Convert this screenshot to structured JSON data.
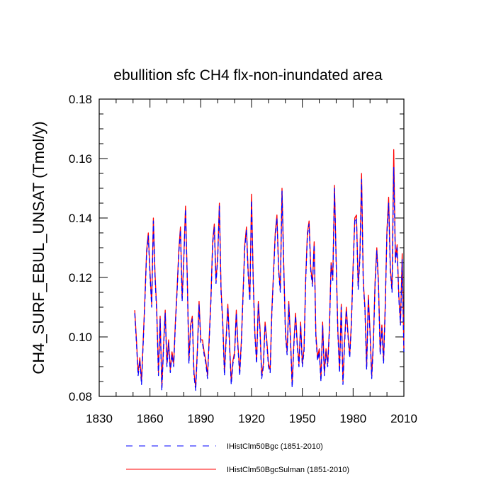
{
  "chart_data": {
    "type": "line",
    "title": "ebullition sfc CH4 flx-non-inundated area",
    "ylabel": "CH4_SURF_EBUL_UNSAT  (Tmol/y)",
    "xlabel": "",
    "xlim": [
      1830,
      2010
    ],
    "ylim": [
      0.08,
      0.18
    ],
    "x_ticks": [
      1830,
      1860,
      1890,
      1920,
      1950,
      1980,
      2010
    ],
    "y_ticks": [
      0.08,
      0.1,
      0.12,
      0.14,
      0.16,
      0.18
    ],
    "x_tick_labels": [
      "1830",
      "1860",
      "1890",
      "1920",
      "1950",
      "1980",
      "2010"
    ],
    "y_tick_labels": [
      "0.08",
      "0.10",
      "0.12",
      "0.14",
      "0.16",
      "0.18"
    ],
    "grid": false,
    "legend_placement": "bottom-left",
    "x": [
      1851,
      1852,
      1853,
      1854,
      1855,
      1856,
      1857,
      1858,
      1859,
      1860,
      1861,
      1862,
      1863,
      1864,
      1865,
      1866,
      1867,
      1868,
      1869,
      1870,
      1871,
      1872,
      1873,
      1874,
      1875,
      1876,
      1877,
      1878,
      1879,
      1880,
      1881,
      1882,
      1883,
      1884,
      1885,
      1886,
      1887,
      1888,
      1889,
      1890,
      1891,
      1892,
      1893,
      1894,
      1895,
      1896,
      1897,
      1898,
      1899,
      1900,
      1901,
      1902,
      1903,
      1904,
      1905,
      1906,
      1907,
      1908,
      1909,
      1910,
      1911,
      1912,
      1913,
      1914,
      1915,
      1916,
      1917,
      1918,
      1919,
      1920,
      1921,
      1922,
      1923,
      1924,
      1925,
      1926,
      1927,
      1928,
      1929,
      1930,
      1931,
      1932,
      1933,
      1934,
      1935,
      1936,
      1937,
      1938,
      1939,
      1940,
      1941,
      1942,
      1943,
      1944,
      1945,
      1946,
      1947,
      1948,
      1949,
      1950,
      1951,
      1952,
      1953,
      1954,
      1955,
      1956,
      1957,
      1958,
      1959,
      1960,
      1961,
      1962,
      1963,
      1964,
      1965,
      1966,
      1967,
      1968,
      1969,
      1970,
      1971,
      1972,
      1973,
      1974,
      1975,
      1976,
      1977,
      1978,
      1979,
      1980,
      1981,
      1982,
      1983,
      1984,
      1985,
      1986,
      1987,
      1988,
      1989,
      1990,
      1991,
      1992,
      1993,
      1994,
      1995,
      1996,
      1997,
      1998,
      1999,
      2000,
      2001,
      2002,
      2003,
      2004,
      2005,
      2006,
      2007,
      2008,
      2009,
      2010
    ],
    "series": [
      {
        "name": "IHistClm50Bgc (1851-2010)",
        "color": "#0000ff",
        "dash": "dashed",
        "values": [
          0.108,
          0.098,
          0.087,
          0.092,
          0.084,
          0.098,
          0.112,
          0.128,
          0.134,
          0.121,
          0.11,
          0.139,
          0.12,
          0.108,
          0.087,
          0.106,
          0.082,
          0.096,
          0.108,
          0.09,
          0.098,
          0.088,
          0.094,
          0.09,
          0.104,
          0.115,
          0.128,
          0.136,
          0.112,
          0.126,
          0.143,
          0.12,
          0.091,
          0.103,
          0.106,
          0.087,
          0.082,
          0.095,
          0.111,
          0.098,
          0.098,
          0.094,
          0.091,
          0.086,
          0.099,
          0.112,
          0.131,
          0.137,
          0.118,
          0.126,
          0.144,
          0.115,
          0.104,
          0.087,
          0.099,
          0.11,
          0.097,
          0.084,
          0.091,
          0.094,
          0.108,
          0.096,
          0.087,
          0.098,
          0.114,
          0.13,
          0.136,
          0.121,
          0.112,
          0.146,
          0.118,
          0.1,
          0.091,
          0.111,
          0.102,
          0.086,
          0.09,
          0.104,
          0.098,
          0.09,
          0.088,
          0.108,
          0.121,
          0.134,
          0.14,
          0.122,
          0.115,
          0.149,
          0.124,
          0.101,
          0.094,
          0.111,
          0.099,
          0.083,
          0.097,
          0.107,
          0.097,
          0.09,
          0.104,
          0.09,
          0.095,
          0.119,
          0.134,
          0.138,
          0.122,
          0.117,
          0.131,
          0.1,
          0.092,
          0.095,
          0.085,
          0.104,
          0.087,
          0.095,
          0.09,
          0.102,
          0.124,
          0.119,
          0.15,
          0.125,
          0.101,
          0.088,
          0.11,
          0.084,
          0.098,
          0.109,
          0.1,
          0.093,
          0.104,
          0.123,
          0.139,
          0.14,
          0.116,
          0.126,
          0.153,
          0.118,
          0.109,
          0.089,
          0.113,
          0.101,
          0.086,
          0.098,
          0.118,
          0.129,
          0.117,
          0.094,
          0.103,
          0.091,
          0.11,
          0.135,
          0.145,
          0.122,
          0.115,
          0.157,
          0.125,
          0.13,
          0.113,
          0.104,
          0.126,
          0.095
        ]
      },
      {
        "name": "IHistClm50BgcSulman (1851-2010)",
        "color": "#ff0000",
        "dash": "solid",
        "values": [
          0.109,
          0.099,
          0.088,
          0.093,
          0.085,
          0.099,
          0.113,
          0.129,
          0.135,
          0.122,
          0.111,
          0.14,
          0.121,
          0.109,
          0.088,
          0.107,
          0.083,
          0.097,
          0.109,
          0.091,
          0.099,
          0.089,
          0.095,
          0.091,
          0.105,
          0.116,
          0.129,
          0.137,
          0.113,
          0.127,
          0.144,
          0.121,
          0.092,
          0.104,
          0.107,
          0.088,
          0.083,
          0.096,
          0.112,
          0.099,
          0.099,
          0.095,
          0.092,
          0.087,
          0.1,
          0.113,
          0.132,
          0.138,
          0.119,
          0.127,
          0.145,
          0.116,
          0.105,
          0.088,
          0.1,
          0.111,
          0.098,
          0.085,
          0.092,
          0.095,
          0.109,
          0.097,
          0.088,
          0.099,
          0.115,
          0.131,
          0.137,
          0.122,
          0.113,
          0.148,
          0.119,
          0.101,
          0.092,
          0.112,
          0.103,
          0.087,
          0.091,
          0.105,
          0.099,
          0.091,
          0.089,
          0.109,
          0.122,
          0.135,
          0.141,
          0.123,
          0.116,
          0.15,
          0.125,
          0.102,
          0.095,
          0.112,
          0.1,
          0.084,
          0.098,
          0.108,
          0.098,
          0.091,
          0.105,
          0.091,
          0.096,
          0.12,
          0.135,
          0.139,
          0.123,
          0.118,
          0.132,
          0.101,
          0.093,
          0.096,
          0.086,
          0.105,
          0.088,
          0.096,
          0.091,
          0.103,
          0.125,
          0.12,
          0.151,
          0.126,
          0.102,
          0.089,
          0.111,
          0.085,
          0.099,
          0.11,
          0.101,
          0.094,
          0.105,
          0.124,
          0.14,
          0.141,
          0.117,
          0.127,
          0.155,
          0.119,
          0.11,
          0.09,
          0.114,
          0.102,
          0.087,
          0.099,
          0.119,
          0.13,
          0.118,
          0.095,
          0.104,
          0.092,
          0.111,
          0.136,
          0.147,
          0.123,
          0.116,
          0.163,
          0.126,
          0.131,
          0.114,
          0.105,
          0.128,
          0.096
        ]
      }
    ]
  }
}
